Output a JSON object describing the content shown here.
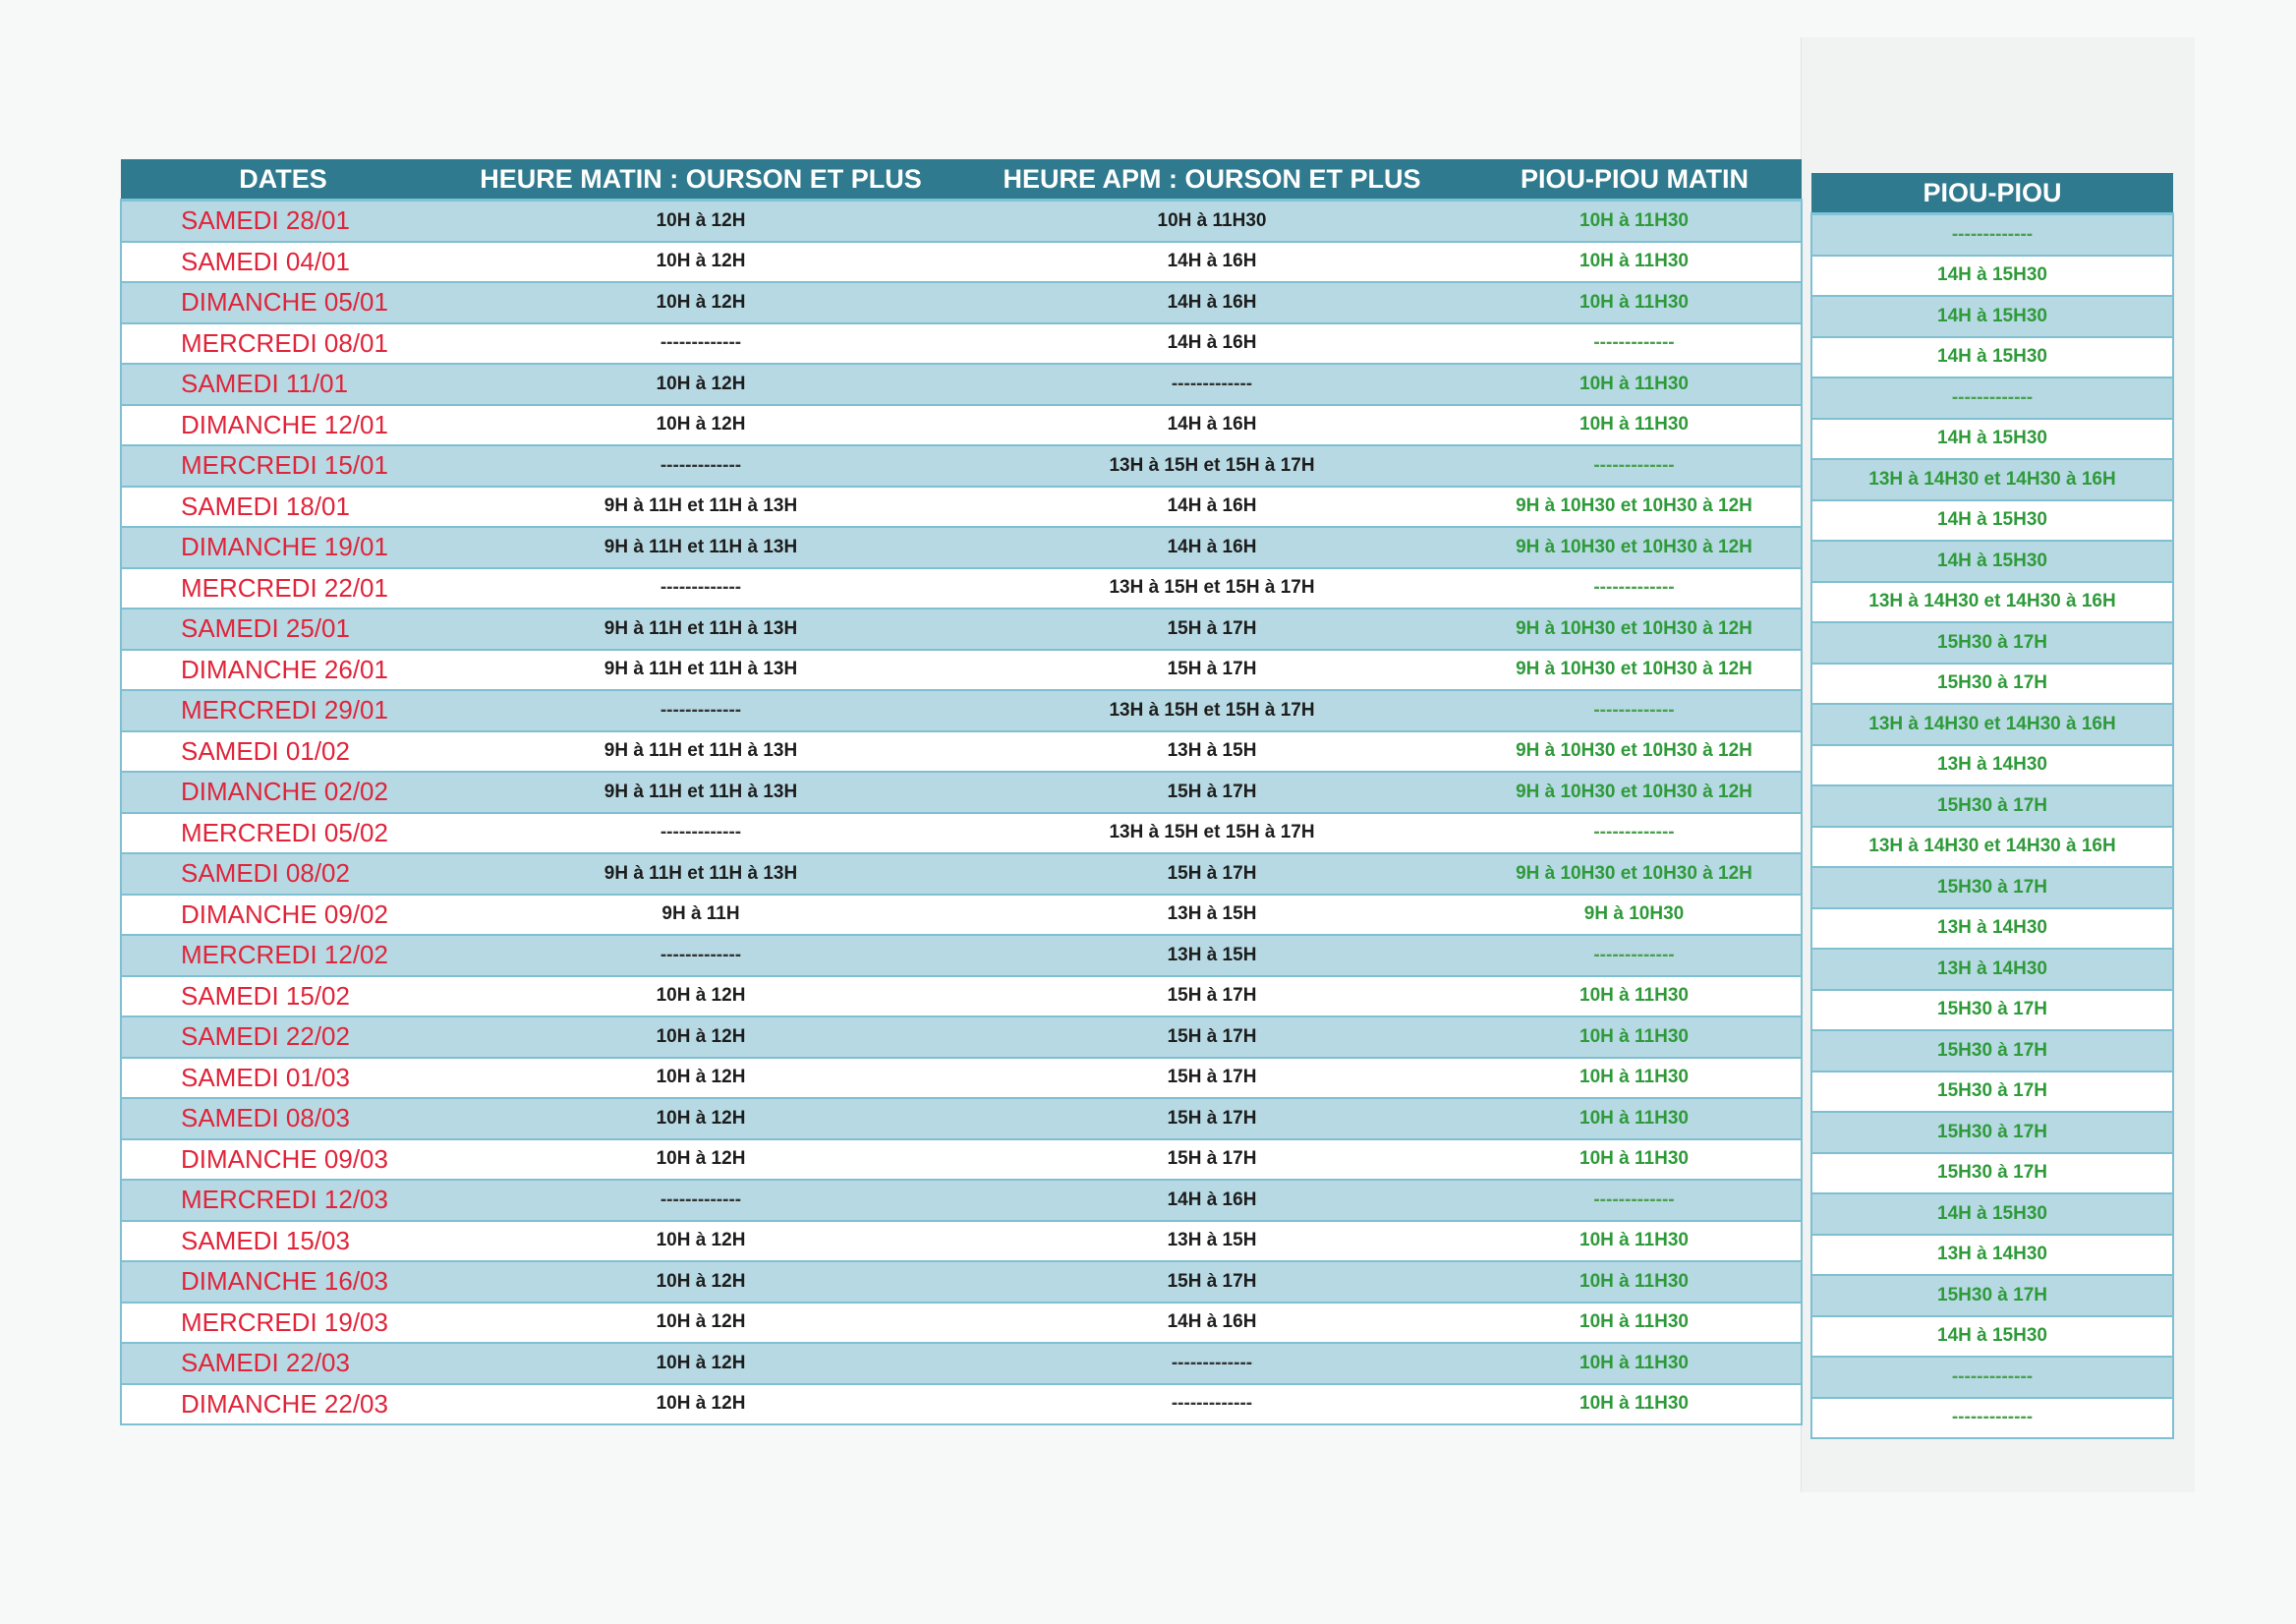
{
  "colors": {
    "header_bg": "#2f7a8e",
    "row_shade": "#b6d9e3",
    "date_red": "#e0243a",
    "piou_green": "#2f9a3a"
  },
  "main": {
    "headers": [
      "DATES",
      "HEURE MATIN : OURSON ET PLUS",
      "HEURE APM : OURSON ET PLUS",
      "PIOU-PIOU MATIN"
    ],
    "rows": [
      [
        "SAMEDI 28/01",
        "10H à 12H",
        "10H à 11H30",
        "10H à 11H30"
      ],
      [
        "SAMEDI 04/01",
        "10H à 12H",
        "14H à 16H",
        "10H à 11H30"
      ],
      [
        "DIMANCHE 05/01",
        "10H à 12H",
        "14H à 16H",
        "10H à 11H30"
      ],
      [
        "MERCREDI 08/01",
        "-------------",
        "14H à 16H",
        "-------------"
      ],
      [
        "SAMEDI 11/01",
        "10H à 12H",
        "-------------",
        "10H à 11H30"
      ],
      [
        "DIMANCHE 12/01",
        "10H à 12H",
        "14H à 16H",
        "10H à 11H30"
      ],
      [
        "MERCREDI 15/01",
        "-------------",
        "13H à 15H et 15H à 17H",
        "-------------"
      ],
      [
        "SAMEDI 18/01",
        "9H à 11H et 11H à 13H",
        "14H à 16H",
        "9H à 10H30 et 10H30 à 12H"
      ],
      [
        "DIMANCHE 19/01",
        "9H à 11H et 11H à 13H",
        "14H à 16H",
        "9H à 10H30 et 10H30 à 12H"
      ],
      [
        "MERCREDI 22/01",
        "-------------",
        "13H à 15H et 15H à 17H",
        "-------------"
      ],
      [
        "SAMEDI 25/01",
        "9H à 11H et 11H à 13H",
        "15H à 17H",
        "9H à 10H30 et 10H30 à 12H"
      ],
      [
        "DIMANCHE 26/01",
        "9H à 11H et 11H à 13H",
        "15H à 17H",
        "9H à 10H30 et 10H30 à 12H"
      ],
      [
        "MERCREDI 29/01",
        "-------------",
        "13H à 15H et 15H à 17H",
        "-------------"
      ],
      [
        "SAMEDI 01/02",
        "9H à 11H et 11H à 13H",
        "13H à 15H",
        "9H à 10H30 et 10H30 à 12H"
      ],
      [
        "DIMANCHE 02/02",
        "9H à 11H et 11H à 13H",
        "15H à 17H",
        "9H à 10H30 et 10H30 à 12H"
      ],
      [
        "MERCREDI 05/02",
        "-------------",
        "13H à 15H et 15H à 17H",
        "-------------"
      ],
      [
        "SAMEDI 08/02",
        "9H à 11H et 11H à 13H",
        "15H à 17H",
        "9H à 10H30 et 10H30 à 12H"
      ],
      [
        "DIMANCHE 09/02",
        "9H à 11H",
        "13H à 15H",
        "9H à 10H30"
      ],
      [
        "MERCREDI 12/02",
        "-------------",
        "13H à 15H",
        "-------------"
      ],
      [
        "SAMEDI 15/02",
        "10H à 12H",
        "15H à 17H",
        "10H à 11H30"
      ],
      [
        "SAMEDI 22/02",
        "10H à 12H",
        "15H à 17H",
        "10H à 11H30"
      ],
      [
        "SAMEDI 01/03",
        "10H à 12H",
        "15H à 17H",
        "10H à 11H30"
      ],
      [
        "SAMEDI 08/03",
        "10H à 12H",
        "15H à 17H",
        "10H à 11H30"
      ],
      [
        "DIMANCHE 09/03",
        "10H à 12H",
        "15H à 17H",
        "10H à 11H30"
      ],
      [
        "MERCREDI 12/03",
        "-------------",
        "14H à 16H",
        "-------------"
      ],
      [
        "SAMEDI 15/03",
        "10H à 12H",
        "13H à 15H",
        "10H à 11H30"
      ],
      [
        "DIMANCHE 16/03",
        "10H à 12H",
        "15H à 17H",
        "10H à 11H30"
      ],
      [
        "MERCREDI 19/03",
        "10H à 12H",
        "14H à 16H",
        "10H à 11H30"
      ],
      [
        "SAMEDI 22/03",
        "10H à 12H",
        "-------------",
        "10H à 11H30"
      ],
      [
        "DIMANCHE 22/03",
        "10H à 12H",
        "-------------",
        "10H à 11H30"
      ]
    ]
  },
  "side": {
    "header": "PIOU-PIOU",
    "rows": [
      "-------------",
      "14H à 15H30",
      "14H à 15H30",
      "14H à 15H30",
      "-------------",
      "14H à 15H30",
      "13H à 14H30 et 14H30 à 16H",
      "14H à 15H30",
      "14H à 15H30",
      "13H à 14H30 et 14H30 à 16H",
      "15H30 à 17H",
      "15H30 à 17H",
      "13H à 14H30 et 14H30 à 16H",
      "13H à 14H30",
      "15H30 à 17H",
      "13H à 14H30 et 14H30 à 16H",
      "15H30 à 17H",
      "13H à 14H30",
      "13H à 14H30",
      "15H30 à 17H",
      "15H30 à 17H",
      "15H30 à 17H",
      "15H30 à 17H",
      "15H30 à 17H",
      "14H à 15H30",
      "13H à 14H30",
      "15H30 à 17H",
      "14H à 15H30",
      "-------------",
      "-------------"
    ]
  }
}
